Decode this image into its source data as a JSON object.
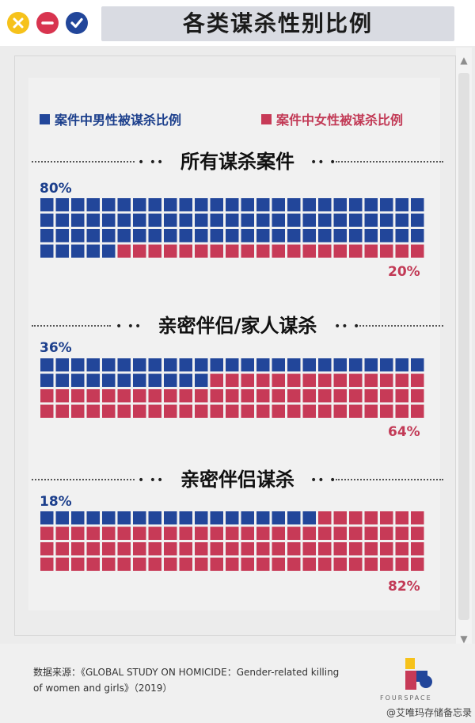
{
  "window": {
    "title": "各类谋杀性别比例",
    "buttons": [
      "close",
      "minimize",
      "confirm"
    ]
  },
  "legend": {
    "male_label": "案件中男性被谋杀比例",
    "female_label": "案件中女性被谋杀比例",
    "male_color": "#22469a",
    "female_color": "#c73a57"
  },
  "chart_data": [
    {
      "type": "waffle",
      "title": "所有谋杀案件",
      "male_pct": 80,
      "female_pct": 20,
      "male_label": "80%",
      "female_label": "20%"
    },
    {
      "type": "waffle",
      "title": "亲密伴侣/家人谋杀",
      "male_pct": 36,
      "female_pct": 64,
      "male_label": "36%",
      "female_label": "64%"
    },
    {
      "type": "waffle",
      "title": "亲密伴侣谋杀",
      "male_pct": 18,
      "female_pct": 82,
      "male_label": "18%",
      "female_label": "82%"
    }
  ],
  "footer": {
    "source_line1": "数据来源：《GLOBAL STUDY ON HOMICIDE：Gender-related killing",
    "source_line2": "of women and girls》（2019）",
    "brand": "FOURSPACE",
    "watermark": "@艾唯玛存储备忘录"
  }
}
